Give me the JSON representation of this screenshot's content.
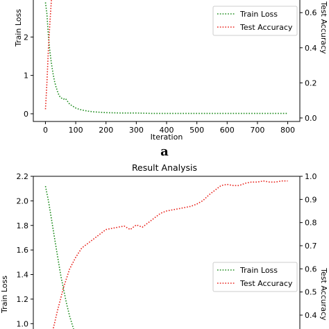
{
  "colors": {
    "train": "#1a8a1a",
    "test": "#e8211a"
  },
  "chart_data": [
    {
      "type": "line",
      "panel_label": "a",
      "title": "",
      "xlabel": "Iteration",
      "ylabel_left": "Train Loss",
      "ylabel_right": "Test Accuracy",
      "xlim": [
        -40,
        840
      ],
      "ylim_left": [
        -0.2,
        3.0
      ],
      "ylim_right": [
        -0.02,
        0.68
      ],
      "xticks": [
        "0",
        "100",
        "200",
        "300",
        "400",
        "500",
        "600",
        "700",
        "800"
      ],
      "yticks_left": [
        "0",
        "1",
        "2"
      ],
      "yticks_right": [
        "0.0",
        "0.2",
        "0.4",
        "0.6"
      ],
      "legend_position": "upper-right",
      "series": [
        {
          "name": "Train Loss",
          "axis": "left",
          "x": [
            0,
            5,
            10,
            15,
            20,
            25,
            30,
            35,
            40,
            45,
            50,
            55,
            60,
            65,
            70,
            75,
            80,
            90,
            100,
            110,
            120,
            140,
            160,
            180,
            200,
            250,
            300,
            350,
            400,
            450,
            500,
            550,
            600,
            650,
            700,
            750,
            800
          ],
          "y": [
            2.9,
            2.6,
            2.0,
            1.6,
            1.3,
            1.05,
            0.85,
            0.7,
            0.58,
            0.48,
            0.42,
            0.4,
            0.38,
            0.4,
            0.36,
            0.3,
            0.25,
            0.2,
            0.15,
            0.12,
            0.1,
            0.07,
            0.05,
            0.04,
            0.03,
            0.02,
            0.02,
            0.01,
            0.01,
            0.01,
            0.01,
            0.01,
            0.01,
            0.01,
            0.01,
            0.01,
            0.01
          ]
        },
        {
          "name": "Test Accuracy",
          "axis": "right",
          "x": [
            0,
            5,
            10,
            15,
            20
          ],
          "y": [
            0.05,
            0.2,
            0.4,
            0.55,
            0.68
          ]
        }
      ]
    },
    {
      "type": "line",
      "title": "Result Analysis",
      "xlabel": "",
      "ylabel_left": "Train Loss",
      "ylabel_right": "Test Accuracy",
      "xlim": [
        -40,
        840
      ],
      "ylim_left": [
        0.9,
        2.2
      ],
      "ylim_right": [
        0.31,
        1.0
      ],
      "yticks_left": [
        "1.0",
        "1.2",
        "1.4",
        "1.6",
        "1.8",
        "2.0",
        "2.2"
      ],
      "yticks_right": [
        "0.4",
        "0.5",
        "0.6",
        "0.7",
        "0.8",
        "0.9",
        "1.0"
      ],
      "legend_position": "lower-right",
      "series": [
        {
          "name": "Train Loss",
          "axis": "left",
          "x": [
            0,
            10,
            20,
            30,
            40,
            50,
            60,
            70,
            80,
            90,
            100
          ],
          "y": [
            2.12,
            2.0,
            1.85,
            1.7,
            1.55,
            1.4,
            1.28,
            1.16,
            1.06,
            0.98,
            0.9
          ]
        },
        {
          "name": "Test Accuracy",
          "axis": "right",
          "x": [
            20,
            40,
            60,
            80,
            100,
            120,
            140,
            160,
            180,
            200,
            220,
            240,
            260,
            280,
            300,
            320,
            340,
            360,
            380,
            400,
            420,
            440,
            460,
            480,
            500,
            520,
            540,
            560,
            580,
            600,
            620,
            640,
            660,
            680,
            700,
            720,
            740,
            760,
            780,
            800
          ],
          "y": [
            0.31,
            0.42,
            0.52,
            0.6,
            0.65,
            0.69,
            0.71,
            0.73,
            0.75,
            0.77,
            0.775,
            0.78,
            0.785,
            0.77,
            0.79,
            0.78,
            0.8,
            0.82,
            0.84,
            0.85,
            0.855,
            0.86,
            0.865,
            0.87,
            0.88,
            0.895,
            0.92,
            0.94,
            0.96,
            0.965,
            0.96,
            0.96,
            0.97,
            0.975,
            0.975,
            0.98,
            0.975,
            0.975,
            0.98,
            0.98
          ]
        }
      ]
    }
  ]
}
